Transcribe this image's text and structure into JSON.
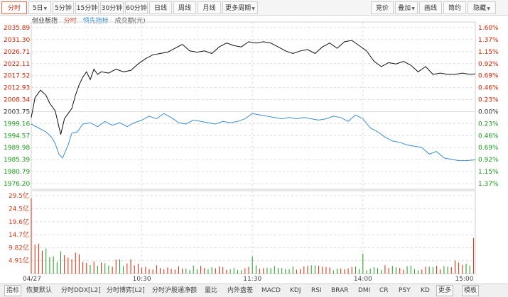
{
  "toolbar": {
    "left": [
      {
        "label": "分时",
        "active": true
      },
      {
        "label": "5日",
        "dropdown": true
      },
      {
        "label": "5分钟"
      },
      {
        "label": "15分钟"
      },
      {
        "label": "30分钟"
      },
      {
        "label": "60分钟"
      },
      {
        "label": "日线"
      },
      {
        "label": "周线"
      },
      {
        "label": "月线"
      },
      {
        "label": "更多周期",
        "dropdown": true
      }
    ],
    "right": [
      {
        "label": "竞价"
      },
      {
        "label": "叠加",
        "dropdown": true
      },
      {
        "label": "画线"
      },
      {
        "label": "简约"
      },
      {
        "label": "隐藏",
        "dropdown": true
      }
    ]
  },
  "info": {
    "index_name": "创业板指",
    "period": "分时",
    "lead_indicator": "领先指标",
    "volume_label": "成交额(元)"
  },
  "colors": {
    "up": "#dd2200",
    "down": "#1a9a1a",
    "price_line": "#111111",
    "lead_line": "#3a8ed6",
    "grid": "#dcdcdc"
  },
  "bottom_tabs": [
    {
      "label": "指标",
      "selected": true
    },
    {
      "label": "恢复默认"
    },
    {
      "label": "分时DDX[L2]"
    },
    {
      "label": "分时博弈[L2]"
    },
    {
      "label": "分时沪股通净额"
    },
    {
      "label": "量比"
    },
    {
      "label": "内外盘差"
    },
    {
      "label": "MACD"
    },
    {
      "label": "KDJ"
    },
    {
      "label": "RSI"
    },
    {
      "label": "BRAR"
    },
    {
      "label": "DMI"
    },
    {
      "label": "CR"
    },
    {
      "label": "PSY"
    },
    {
      "label": "KD"
    },
    {
      "label": "更多",
      "boxed": true
    },
    {
      "label": "模板",
      "boxed": true
    }
  ],
  "chart_data": {
    "type": "line",
    "price_axis_labels": [
      "2035.89",
      "2031.30",
      "2026.71",
      "2022.11",
      "2017.52",
      "2012.93",
      "2008.34",
      "2003.75",
      "1999.16",
      "1994.57",
      "1989.98",
      "1985.39",
      "1980.79",
      "1976.20"
    ],
    "pct_axis_labels": [
      "1.60%",
      "1.37%",
      "1.15%",
      "0.92%",
      "0.69%",
      "0.46%",
      "0.23%",
      "0.00%",
      "0.23%",
      "0.46%",
      "0.69%",
      "0.92%",
      "1.15%",
      "1.37%"
    ],
    "preclose": 2003.75,
    "ylim": [
      1976.2,
      2035.89
    ],
    "volume_axis_labels": [
      "29.5亿",
      "24.5亿",
      "19.6亿",
      "14.7亿",
      "9.82亿",
      "4.91亿"
    ],
    "volume_ylim": [
      0,
      29.5
    ],
    "x_tick_labels": [
      "04/27",
      "10:30",
      "11:30",
      "14:00",
      "15:00"
    ],
    "x_tick_minutes": [
      0,
      60,
      120,
      180,
      240
    ],
    "series": [
      {
        "name": "创业板指",
        "points": [
          [
            0,
            2001.5
          ],
          [
            2,
            2009.0
          ],
          [
            5,
            2012.0
          ],
          [
            8,
            2010.0
          ],
          [
            10,
            2007.0
          ],
          [
            13,
            2004.0
          ],
          [
            15,
            1998.0
          ],
          [
            16,
            1995.0
          ],
          [
            18,
            2001.0
          ],
          [
            20,
            2003.0
          ],
          [
            22,
            2005.0
          ],
          [
            24,
            2010.0
          ],
          [
            26,
            2014.0
          ],
          [
            28,
            2017.0
          ],
          [
            30,
            2019.0
          ],
          [
            32,
            2016.0
          ],
          [
            34,
            2020.0
          ],
          [
            36,
            2018.0
          ],
          [
            38,
            2019.0
          ],
          [
            42,
            2018.5
          ],
          [
            46,
            2020.0
          ],
          [
            50,
            2019.0
          ],
          [
            54,
            2019.5
          ],
          [
            58,
            2022.0
          ],
          [
            62,
            2024.0
          ],
          [
            66,
            2025.5
          ],
          [
            70,
            2026.0
          ],
          [
            74,
            2026.5
          ],
          [
            78,
            2028.0
          ],
          [
            82,
            2029.5
          ],
          [
            86,
            2027.0
          ],
          [
            90,
            2026.5
          ],
          [
            94,
            2027.0
          ],
          [
            98,
            2026.0
          ],
          [
            102,
            2028.5
          ],
          [
            106,
            2030.0
          ],
          [
            110,
            2029.0
          ],
          [
            114,
            2028.5
          ],
          [
            118,
            2030.5
          ],
          [
            122,
            2030.0
          ],
          [
            126,
            2030.5
          ],
          [
            130,
            2030.0
          ],
          [
            134,
            2028.5
          ],
          [
            138,
            2027.0
          ],
          [
            142,
            2026.0
          ],
          [
            146,
            2027.0
          ],
          [
            150,
            2027.5
          ],
          [
            154,
            2026.0
          ],
          [
            158,
            2028.5
          ],
          [
            162,
            2030.0
          ],
          [
            166,
            2028.0
          ],
          [
            170,
            2030.5
          ],
          [
            174,
            2031.0
          ],
          [
            178,
            2029.0
          ],
          [
            182,
            2027.0
          ],
          [
            186,
            2023.0
          ],
          [
            190,
            2021.0
          ],
          [
            194,
            2022.5
          ],
          [
            198,
            2022.0
          ],
          [
            202,
            2023.0
          ],
          [
            206,
            2021.5
          ],
          [
            210,
            2019.0
          ],
          [
            214,
            2021.0
          ],
          [
            218,
            2018.0
          ],
          [
            222,
            2018.5
          ],
          [
            226,
            2018.0
          ],
          [
            230,
            2018.0
          ],
          [
            234,
            2018.5
          ],
          [
            238,
            2018.0
          ],
          [
            241,
            2018.2
          ]
        ]
      },
      {
        "name": "领先指标",
        "points": [
          [
            0,
            1999.0
          ],
          [
            4,
            1997.5
          ],
          [
            8,
            1996.0
          ],
          [
            11,
            1994.0
          ],
          [
            13,
            1991.5
          ],
          [
            15,
            1987.5
          ],
          [
            17,
            1986.0
          ],
          [
            20,
            1991.0
          ],
          [
            22,
            1995.5
          ],
          [
            25,
            1996.0
          ],
          [
            28,
            1999.0
          ],
          [
            32,
            1999.5
          ],
          [
            36,
            1998.0
          ],
          [
            40,
            2000.0
          ],
          [
            44,
            1998.5
          ],
          [
            48,
            1999.5
          ],
          [
            52,
            1998.0
          ],
          [
            56,
            1999.5
          ],
          [
            60,
            2000.5
          ],
          [
            64,
            2002.0
          ],
          [
            68,
            2001.0
          ],
          [
            72,
            2003.0
          ],
          [
            76,
            2001.5
          ],
          [
            80,
            1999.5
          ],
          [
            84,
            1999.0
          ],
          [
            88,
            2000.5
          ],
          [
            92,
            2000.0
          ],
          [
            96,
            1999.5
          ],
          [
            100,
            1999.0
          ],
          [
            104,
            2000.0
          ],
          [
            108,
            1999.5
          ],
          [
            112,
            2000.0
          ],
          [
            116,
            2001.0
          ],
          [
            120,
            2003.0
          ],
          [
            124,
            2002.5
          ],
          [
            128,
            2002.0
          ],
          [
            132,
            2001.5
          ],
          [
            136,
            2001.0
          ],
          [
            140,
            2001.5
          ],
          [
            144,
            2001.0
          ],
          [
            148,
            2001.5
          ],
          [
            152,
            2001.0
          ],
          [
            156,
            2000.5
          ],
          [
            160,
            2001.0
          ],
          [
            164,
            2002.0
          ],
          [
            168,
            2001.5
          ],
          [
            172,
            2000.0
          ],
          [
            176,
            2002.5
          ],
          [
            180,
            2001.0
          ],
          [
            184,
            1997.5
          ],
          [
            188,
            1996.0
          ],
          [
            192,
            1994.0
          ],
          [
            196,
            1992.5
          ],
          [
            200,
            1992.0
          ],
          [
            204,
            1991.0
          ],
          [
            208,
            1990.5
          ],
          [
            212,
            1990.0
          ],
          [
            216,
            1987.5
          ],
          [
            220,
            1988.5
          ],
          [
            224,
            1986.0
          ],
          [
            228,
            1985.5
          ],
          [
            232,
            1985.0
          ],
          [
            236,
            1985.0
          ],
          [
            241,
            1985.3
          ]
        ]
      }
    ]
  }
}
